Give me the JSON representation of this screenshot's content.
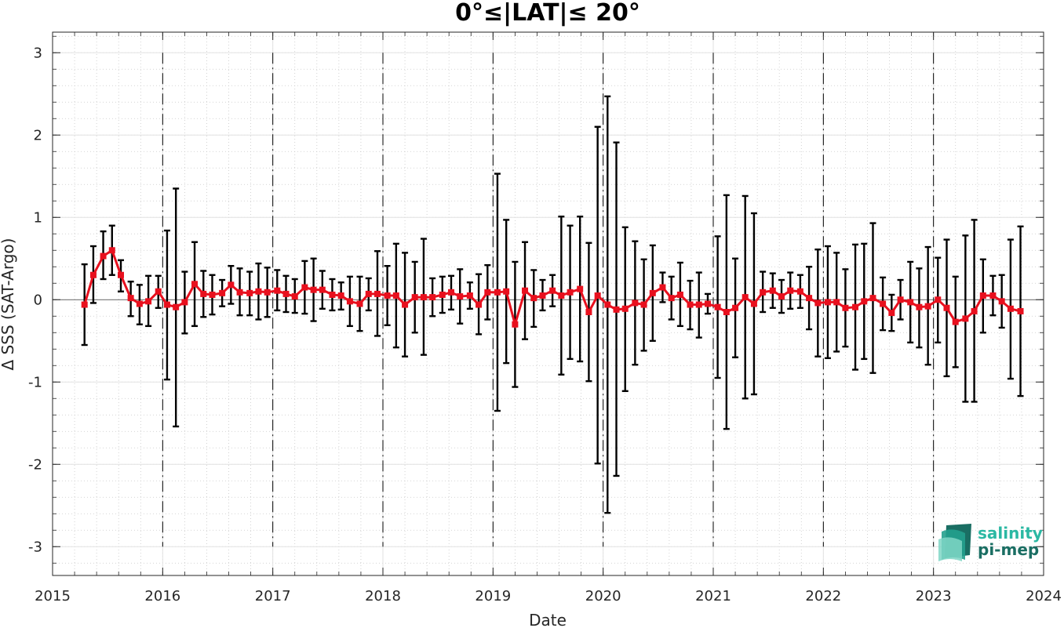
{
  "chart_data": {
    "type": "line",
    "title": "0°≤|LAT|≤ 20°",
    "xlabel": "Date",
    "ylabel": "Δ SSS (SAT-Argo)",
    "xlim": [
      2015,
      2024
    ],
    "ylim": [
      -3.35,
      3.25
    ],
    "x_ticks": [
      "2015",
      "2016",
      "2017",
      "2018",
      "2019",
      "2020",
      "2021",
      "2022",
      "2023",
      "2024"
    ],
    "y_ticks": [
      "3",
      "2",
      "1",
      "0",
      "-1",
      "-2",
      "-3"
    ],
    "grid": "minor dotted",
    "year_markers": [
      "2016",
      "2017",
      "2018",
      "2019",
      "2020",
      "2021",
      "2022",
      "2023"
    ],
    "series": [
      {
        "name": "",
        "color": "#e8101e",
        "points": [
          {
            "x": 2015.29,
            "y": -0.06,
            "hi": 0.43,
            "lo": -0.55
          },
          {
            "x": 2015.37,
            "y": 0.3,
            "hi": 0.65,
            "lo": -0.04
          },
          {
            "x": 2015.46,
            "y": 0.53,
            "hi": 0.83,
            "lo": 0.25
          },
          {
            "x": 2015.54,
            "y": 0.6,
            "hi": 0.9,
            "lo": 0.3
          },
          {
            "x": 2015.62,
            "y": 0.3,
            "hi": 0.48,
            "lo": 0.1
          },
          {
            "x": 2015.71,
            "y": 0.02,
            "hi": 0.22,
            "lo": -0.2
          },
          {
            "x": 2015.79,
            "y": -0.05,
            "hi": 0.18,
            "lo": -0.3
          },
          {
            "x": 2015.87,
            "y": -0.02,
            "hi": 0.29,
            "lo": -0.32
          },
          {
            "x": 2015.96,
            "y": 0.1,
            "hi": 0.29,
            "lo": -0.1
          },
          {
            "x": 2016.04,
            "y": -0.06,
            "hi": 0.84,
            "lo": -0.97
          },
          {
            "x": 2016.12,
            "y": -0.09,
            "hi": 1.35,
            "lo": -1.54
          },
          {
            "x": 2016.2,
            "y": -0.03,
            "hi": 0.34,
            "lo": -0.41
          },
          {
            "x": 2016.29,
            "y": 0.19,
            "hi": 0.7,
            "lo": -0.32
          },
          {
            "x": 2016.37,
            "y": 0.07,
            "hi": 0.35,
            "lo": -0.21
          },
          {
            "x": 2016.45,
            "y": 0.06,
            "hi": 0.3,
            "lo": -0.18
          },
          {
            "x": 2016.54,
            "y": 0.08,
            "hi": 0.24,
            "lo": -0.08
          },
          {
            "x": 2016.62,
            "y": 0.18,
            "hi": 0.41,
            "lo": -0.05
          },
          {
            "x": 2016.7,
            "y": 0.09,
            "hi": 0.38,
            "lo": -0.19
          },
          {
            "x": 2016.79,
            "y": 0.08,
            "hi": 0.34,
            "lo": -0.19
          },
          {
            "x": 2016.87,
            "y": 0.1,
            "hi": 0.44,
            "lo": -0.24
          },
          {
            "x": 2016.95,
            "y": 0.09,
            "hi": 0.39,
            "lo": -0.21
          },
          {
            "x": 2017.04,
            "y": 0.11,
            "hi": 0.36,
            "lo": -0.13
          },
          {
            "x": 2017.12,
            "y": 0.07,
            "hi": 0.29,
            "lo": -0.15
          },
          {
            "x": 2017.2,
            "y": 0.04,
            "hi": 0.25,
            "lo": -0.16
          },
          {
            "x": 2017.29,
            "y": 0.15,
            "hi": 0.47,
            "lo": -0.17
          },
          {
            "x": 2017.37,
            "y": 0.12,
            "hi": 0.5,
            "lo": -0.26
          },
          {
            "x": 2017.45,
            "y": 0.12,
            "hi": 0.35,
            "lo": -0.11
          },
          {
            "x": 2017.54,
            "y": 0.06,
            "hi": 0.25,
            "lo": -0.13
          },
          {
            "x": 2017.62,
            "y": 0.05,
            "hi": 0.21,
            "lo": -0.12
          },
          {
            "x": 2017.7,
            "y": -0.02,
            "hi": 0.28,
            "lo": -0.32
          },
          {
            "x": 2017.79,
            "y": -0.05,
            "hi": 0.28,
            "lo": -0.38
          },
          {
            "x": 2017.87,
            "y": 0.07,
            "hi": 0.26,
            "lo": -0.13
          },
          {
            "x": 2017.95,
            "y": 0.07,
            "hi": 0.59,
            "lo": -0.44
          },
          {
            "x": 2018.04,
            "y": 0.05,
            "hi": 0.41,
            "lo": -0.31
          },
          {
            "x": 2018.12,
            "y": 0.05,
            "hi": 0.68,
            "lo": -0.58
          },
          {
            "x": 2018.2,
            "y": -0.06,
            "hi": 0.57,
            "lo": -0.69
          },
          {
            "x": 2018.29,
            "y": 0.03,
            "hi": 0.46,
            "lo": -0.4
          },
          {
            "x": 2018.37,
            "y": 0.03,
            "hi": 0.74,
            "lo": -0.67
          },
          {
            "x": 2018.45,
            "y": 0.03,
            "hi": 0.26,
            "lo": -0.2
          },
          {
            "x": 2018.54,
            "y": 0.06,
            "hi": 0.28,
            "lo": -0.16
          },
          {
            "x": 2018.62,
            "y": 0.09,
            "hi": 0.29,
            "lo": -0.12
          },
          {
            "x": 2018.7,
            "y": 0.04,
            "hi": 0.37,
            "lo": -0.29
          },
          {
            "x": 2018.79,
            "y": 0.05,
            "hi": 0.21,
            "lo": -0.11
          },
          {
            "x": 2018.87,
            "y": -0.06,
            "hi": 0.31,
            "lo": -0.42
          },
          {
            "x": 2018.95,
            "y": 0.09,
            "hi": 0.42,
            "lo": -0.24
          },
          {
            "x": 2019.04,
            "y": 0.09,
            "hi": 1.53,
            "lo": -1.35
          },
          {
            "x": 2019.12,
            "y": 0.1,
            "hi": 0.97,
            "lo": -0.77
          },
          {
            "x": 2019.2,
            "y": -0.3,
            "hi": 0.46,
            "lo": -1.06
          },
          {
            "x": 2019.29,
            "y": 0.11,
            "hi": 0.7,
            "lo": -0.48
          },
          {
            "x": 2019.37,
            "y": 0.02,
            "hi": 0.36,
            "lo": -0.33
          },
          {
            "x": 2019.45,
            "y": 0.05,
            "hi": 0.24,
            "lo": -0.13
          },
          {
            "x": 2019.54,
            "y": 0.11,
            "hi": 0.3,
            "lo": -0.08
          },
          {
            "x": 2019.62,
            "y": 0.05,
            "hi": 1.01,
            "lo": -0.91
          },
          {
            "x": 2019.7,
            "y": 0.09,
            "hi": 0.9,
            "lo": -0.72
          },
          {
            "x": 2019.79,
            "y": 0.13,
            "hi": 1.01,
            "lo": -0.75
          },
          {
            "x": 2019.87,
            "y": -0.15,
            "hi": 0.69,
            "lo": -0.99
          },
          {
            "x": 2019.95,
            "y": 0.05,
            "hi": 2.1,
            "lo": -1.99
          },
          {
            "x": 2020.04,
            "y": -0.06,
            "hi": 2.47,
            "lo": -2.59
          },
          {
            "x": 2020.12,
            "y": -0.12,
            "hi": 1.91,
            "lo": -2.14
          },
          {
            "x": 2020.2,
            "y": -0.11,
            "hi": 0.88,
            "lo": -1.11
          },
          {
            "x": 2020.29,
            "y": -0.04,
            "hi": 0.71,
            "lo": -0.79
          },
          {
            "x": 2020.37,
            "y": -0.06,
            "hi": 0.49,
            "lo": -0.62
          },
          {
            "x": 2020.45,
            "y": 0.08,
            "hi": 0.66,
            "lo": -0.5
          },
          {
            "x": 2020.54,
            "y": 0.15,
            "hi": 0.33,
            "lo": -0.03
          },
          {
            "x": 2020.62,
            "y": 0.02,
            "hi": 0.28,
            "lo": -0.24
          },
          {
            "x": 2020.7,
            "y": 0.06,
            "hi": 0.45,
            "lo": -0.32
          },
          {
            "x": 2020.79,
            "y": -0.06,
            "hi": 0.23,
            "lo": -0.36
          },
          {
            "x": 2020.87,
            "y": -0.06,
            "hi": 0.33,
            "lo": -0.46
          },
          {
            "x": 2020.95,
            "y": -0.05,
            "hi": 0.07,
            "lo": -0.17
          },
          {
            "x": 2021.04,
            "y": -0.09,
            "hi": 0.77,
            "lo": -0.95
          },
          {
            "x": 2021.12,
            "y": -0.15,
            "hi": 1.27,
            "lo": -1.57
          },
          {
            "x": 2021.2,
            "y": -0.1,
            "hi": 0.5,
            "lo": -0.7
          },
          {
            "x": 2021.29,
            "y": 0.03,
            "hi": 1.26,
            "lo": -1.2
          },
          {
            "x": 2021.37,
            "y": -0.05,
            "hi": 1.05,
            "lo": -1.15
          },
          {
            "x": 2021.45,
            "y": 0.09,
            "hi": 0.34,
            "lo": -0.15
          },
          {
            "x": 2021.54,
            "y": 0.11,
            "hi": 0.32,
            "lo": -0.1
          },
          {
            "x": 2021.62,
            "y": 0.04,
            "hi": 0.24,
            "lo": -0.16
          },
          {
            "x": 2021.7,
            "y": 0.11,
            "hi": 0.33,
            "lo": -0.11
          },
          {
            "x": 2021.79,
            "y": 0.1,
            "hi": 0.3,
            "lo": -0.1
          },
          {
            "x": 2021.87,
            "y": 0.02,
            "hi": 0.4,
            "lo": -0.36
          },
          {
            "x": 2021.95,
            "y": -0.04,
            "hi": 0.61,
            "lo": -0.69
          },
          {
            "x": 2022.04,
            "y": -0.03,
            "hi": 0.65,
            "lo": -0.71
          },
          {
            "x": 2022.12,
            "y": -0.03,
            "hi": 0.57,
            "lo": -0.63
          },
          {
            "x": 2022.2,
            "y": -0.1,
            "hi": 0.37,
            "lo": -0.57
          },
          {
            "x": 2022.29,
            "y": -0.09,
            "hi": 0.67,
            "lo": -0.85
          },
          {
            "x": 2022.37,
            "y": -0.02,
            "hi": 0.68,
            "lo": -0.72
          },
          {
            "x": 2022.45,
            "y": 0.02,
            "hi": 0.93,
            "lo": -0.89
          },
          {
            "x": 2022.54,
            "y": -0.05,
            "hi": 0.27,
            "lo": -0.37
          },
          {
            "x": 2022.62,
            "y": -0.16,
            "hi": 0.06,
            "lo": -0.38
          },
          {
            "x": 2022.7,
            "y": 0.0,
            "hi": 0.24,
            "lo": -0.24
          },
          {
            "x": 2022.79,
            "y": -0.03,
            "hi": 0.46,
            "lo": -0.52
          },
          {
            "x": 2022.87,
            "y": -0.09,
            "hi": 0.38,
            "lo": -0.58
          },
          {
            "x": 2022.95,
            "y": -0.08,
            "hi": 0.64,
            "lo": -0.79
          },
          {
            "x": 2023.04,
            "y": 0.0,
            "hi": 0.51,
            "lo": -0.52
          },
          {
            "x": 2023.12,
            "y": -0.1,
            "hi": 0.73,
            "lo": -0.93
          },
          {
            "x": 2023.2,
            "y": -0.27,
            "hi": 0.28,
            "lo": -0.82
          },
          {
            "x": 2023.29,
            "y": -0.23,
            "hi": 0.78,
            "lo": -1.24
          },
          {
            "x": 2023.37,
            "y": -0.14,
            "hi": 0.97,
            "lo": -1.24
          },
          {
            "x": 2023.45,
            "y": 0.05,
            "hi": 0.49,
            "lo": -0.4
          },
          {
            "x": 2023.54,
            "y": 0.05,
            "hi": 0.29,
            "lo": -0.19
          },
          {
            "x": 2023.62,
            "y": -0.02,
            "hi": 0.3,
            "lo": -0.34
          },
          {
            "x": 2023.7,
            "y": -0.11,
            "hi": 0.73,
            "lo": -0.96
          },
          {
            "x": 2023.79,
            "y": -0.14,
            "hi": 0.89,
            "lo": -1.17
          }
        ]
      }
    ]
  },
  "logo": {
    "line1": "salinity",
    "line2": "pi-mep",
    "line1_color": "#2bb8a3",
    "line2_color": "#1a6e63"
  }
}
